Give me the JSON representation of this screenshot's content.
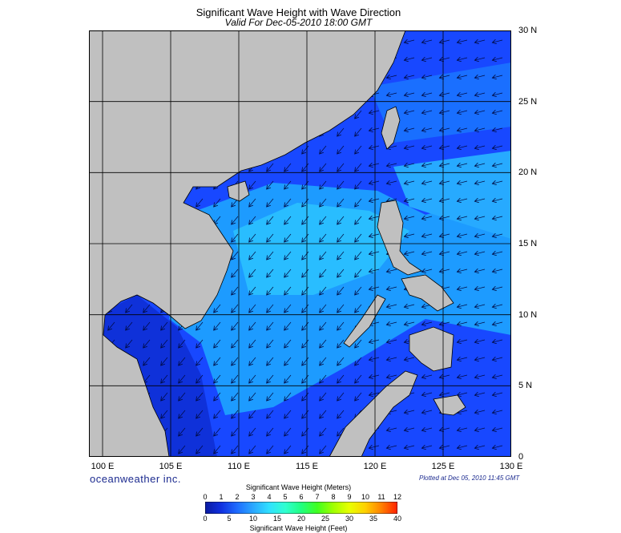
{
  "title": "Significant Wave Height with Wave Direction",
  "subtitle": "Valid For Dec-05-2010 18:00 GMT",
  "map": {
    "lon_range": [
      99,
      130
    ],
    "lat_range": [
      0,
      30
    ],
    "lon_ticks": [
      {
        "value": 100,
        "label": "100 E"
      },
      {
        "value": 105,
        "label": "105 E"
      },
      {
        "value": 110,
        "label": "110 E"
      },
      {
        "value": 115,
        "label": "115 E"
      },
      {
        "value": 120,
        "label": "120 E"
      },
      {
        "value": 125,
        "label": "125 E"
      },
      {
        "value": 130,
        "label": "130 E"
      }
    ],
    "lat_ticks": [
      {
        "value": 30,
        "label": "30 N"
      },
      {
        "value": 25,
        "label": "25 N"
      },
      {
        "value": 20,
        "label": "20 N"
      },
      {
        "value": 15,
        "label": "15 N"
      },
      {
        "value": 10,
        "label": "10 N"
      },
      {
        "value": 5,
        "label": "5 N"
      },
      {
        "value": 0,
        "label": "0"
      }
    ],
    "ocean_color": "#1e6cff",
    "land_color": "#c0c0c0"
  },
  "brand": "oceanweather inc.",
  "plotted": "Plotted at Dec 05, 2010 11:45 GMT",
  "colorbar": {
    "meters_title": "Significant Wave Height (Meters)",
    "feet_title": "Significant Wave Height (Feet)",
    "meters_ticks": [
      "0",
      "1",
      "2",
      "3",
      "4",
      "5",
      "6",
      "7",
      "8",
      "9",
      "10",
      "11",
      "12"
    ],
    "feet_ticks": [
      "0",
      "5",
      "10",
      "15",
      "20",
      "25",
      "30",
      "35",
      "40"
    ],
    "colors": [
      "#0a1aa0",
      "#1030e0",
      "#1e6cff",
      "#2aa8ff",
      "#30e0ff",
      "#30ffd0",
      "#20ff80",
      "#40ff20",
      "#a0ff00",
      "#e8ff00",
      "#ffd000",
      "#ff8000",
      "#ff2000"
    ]
  }
}
